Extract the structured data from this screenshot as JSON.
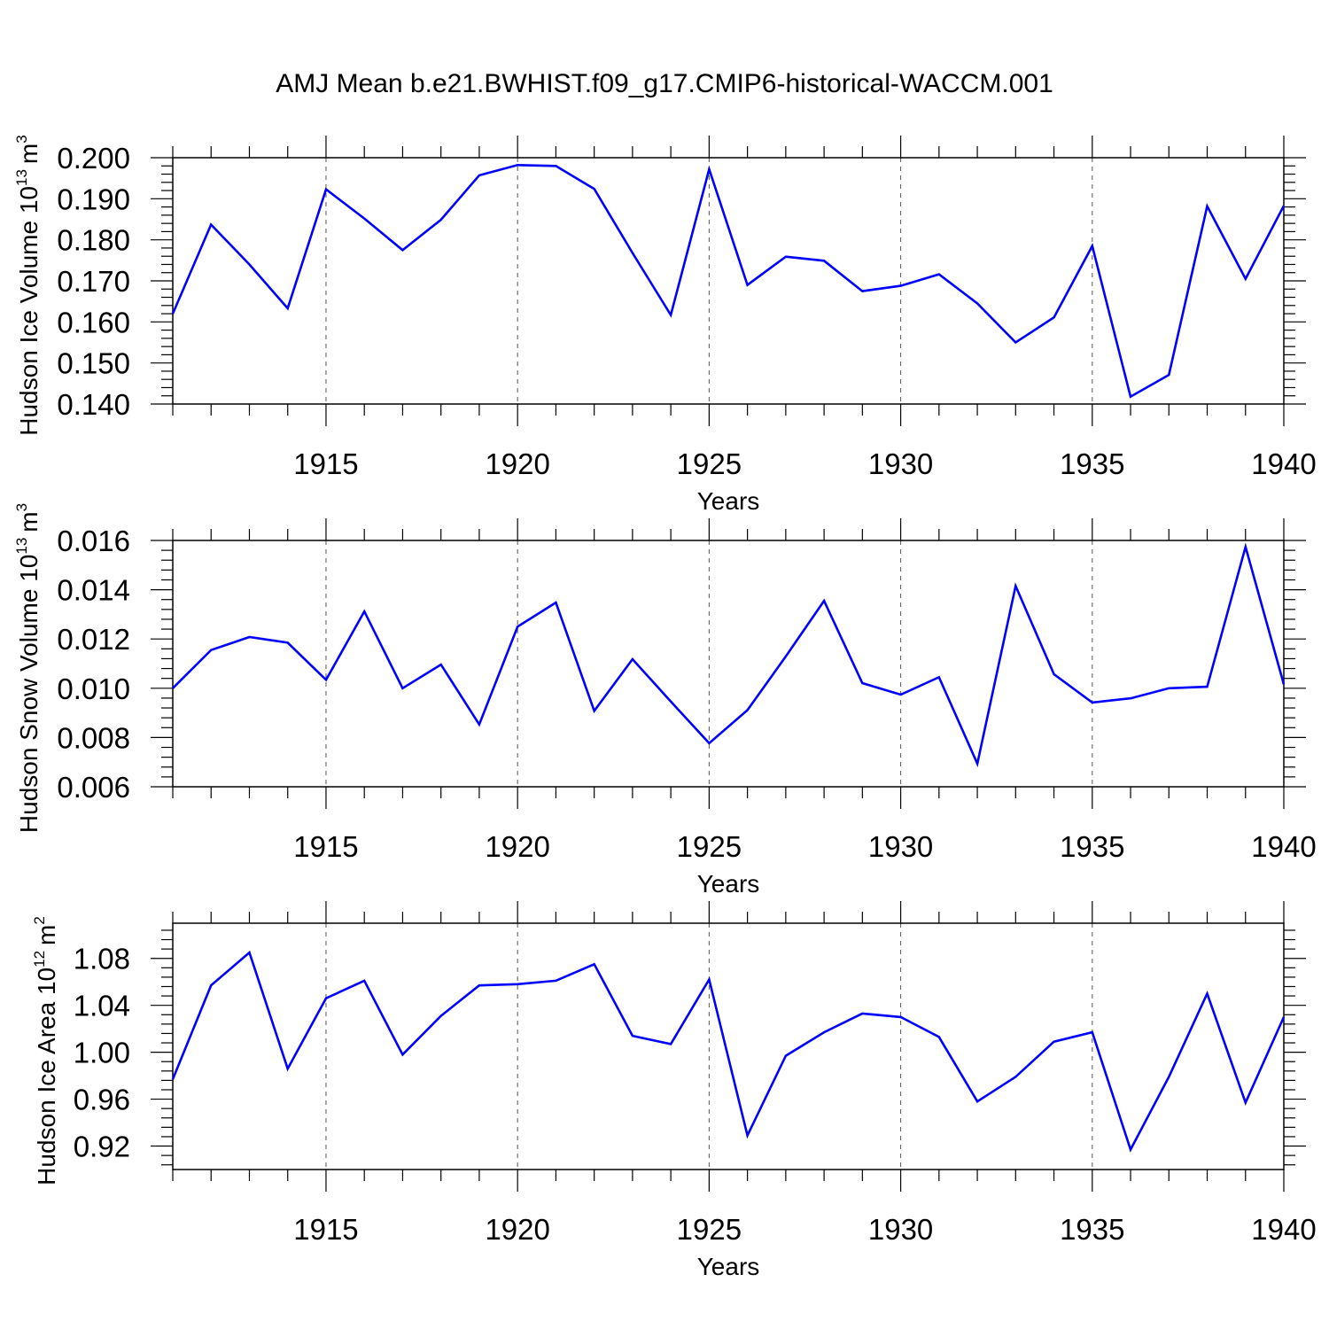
{
  "title": "AMJ Mean b.e21.BWHIST.f09_g17.CMIP6-historical-WACCM.001",
  "chart_data": [
    {
      "type": "line",
      "title": "AMJ Mean b.e21.BWHIST.f09_g17.CMIP6-historical-WACCM.001",
      "ylabel": "Hudson Ice Volume 10",
      "ylabel_sup": "13",
      "ylabel_unit": "m",
      "ylabel_unit_sup": "3",
      "xlabel": "Years",
      "xlim": [
        1911,
        1940
      ],
      "ylim": [
        0.14,
        0.2
      ],
      "yticks": [
        0.14,
        0.15,
        0.16,
        0.17,
        0.18,
        0.19,
        0.2
      ],
      "ytick_labels": [
        "0.140",
        "0.150",
        "0.160",
        "0.170",
        "0.180",
        "0.190",
        "0.200"
      ],
      "xticks": [
        1915,
        1920,
        1925,
        1930,
        1935,
        1940
      ],
      "xtick_labels": [
        "1915",
        "1920",
        "1925",
        "1930",
        "1935",
        "1940"
      ],
      "line_color": "#0000ff",
      "series": [
        {
          "name": "Hudson Ice Volume",
          "x": [
            1911,
            1912,
            1913,
            1914,
            1915,
            1916,
            1917,
            1918,
            1919,
            1920,
            1921,
            1922,
            1923,
            1924,
            1925,
            1926,
            1927,
            1928,
            1929,
            1930,
            1931,
            1932,
            1933,
            1934,
            1935,
            1936,
            1937,
            1938,
            1939,
            1940
          ],
          "values": [
            0.162,
            0.1837,
            0.174,
            0.1633,
            0.1923,
            0.1852,
            0.1775,
            0.1849,
            0.1957,
            0.1982,
            0.198,
            0.1924,
            0.1768,
            0.1617,
            0.1972,
            0.169,
            0.1759,
            0.1749,
            0.1675,
            0.1688,
            0.1716,
            0.1645,
            0.155,
            0.1611,
            0.1785,
            0.1418,
            0.1471,
            0.1882,
            0.1705,
            0.1883
          ]
        }
      ]
    },
    {
      "type": "line",
      "ylabel": "Hudson Snow Volume 10",
      "ylabel_sup": "13",
      "ylabel_unit": "m",
      "ylabel_unit_sup": "3",
      "xlabel": "Years",
      "xlim": [
        1911,
        1940
      ],
      "ylim": [
        0.006,
        0.016
      ],
      "yticks": [
        0.006,
        0.008,
        0.01,
        0.012,
        0.014,
        0.016
      ],
      "ytick_labels": [
        "0.006",
        "0.008",
        "0.010",
        "0.012",
        "0.014",
        "0.016"
      ],
      "xticks": [
        1915,
        1920,
        1925,
        1930,
        1935,
        1940
      ],
      "xtick_labels": [
        "1915",
        "1920",
        "1925",
        "1930",
        "1935",
        "1940"
      ],
      "line_color": "#0000ff",
      "series": [
        {
          "name": "Hudson Snow Volume",
          "x": [
            1911,
            1912,
            1913,
            1914,
            1915,
            1916,
            1917,
            1918,
            1919,
            1920,
            1921,
            1922,
            1923,
            1924,
            1925,
            1926,
            1927,
            1928,
            1929,
            1930,
            1931,
            1932,
            1933,
            1934,
            1935,
            1936,
            1937,
            1938,
            1939,
            1940
          ],
          "values": [
            0.01,
            0.01155,
            0.01208,
            0.01185,
            0.01034,
            0.01312,
            0.01,
            0.01096,
            0.00853,
            0.0125,
            0.01348,
            0.00908,
            0.01118,
            0.00946,
            0.00777,
            0.00911,
            0.01129,
            0.01355,
            0.01021,
            0.00974,
            0.01045,
            0.00694,
            0.01415,
            0.01057,
            0.00942,
            0.00959,
            0.01,
            0.01006,
            0.01574,
            0.01016
          ]
        }
      ]
    },
    {
      "type": "line",
      "ylabel": "Hudson Ice Area 10",
      "ylabel_sup": "12",
      "ylabel_unit": "m",
      "ylabel_unit_sup": "2",
      "xlabel": "Years",
      "xlim": [
        1911,
        1940
      ],
      "ylim": [
        0.9,
        1.11
      ],
      "yticks": [
        0.92,
        0.96,
        1.0,
        1.04,
        1.08
      ],
      "ytick_labels": [
        "0.92",
        "0.96",
        "1.00",
        "1.04",
        "1.08"
      ],
      "xticks": [
        1915,
        1920,
        1925,
        1930,
        1935,
        1940
      ],
      "xtick_labels": [
        "1915",
        "1920",
        "1925",
        "1930",
        "1935",
        "1940"
      ],
      "line_color": "#0000ff",
      "series": [
        {
          "name": "Hudson Ice Area",
          "x": [
            1911,
            1912,
            1913,
            1914,
            1915,
            1916,
            1917,
            1918,
            1919,
            1920,
            1921,
            1922,
            1923,
            1924,
            1925,
            1926,
            1927,
            1928,
            1929,
            1930,
            1931,
            1932,
            1933,
            1934,
            1935,
            1936,
            1937,
            1938,
            1939,
            1940
          ],
          "values": [
            0.977,
            1.057,
            1.085,
            0.986,
            1.046,
            1.061,
            0.998,
            1.031,
            1.057,
            1.058,
            1.061,
            1.075,
            1.014,
            1.007,
            1.062,
            0.929,
            0.997,
            1.017,
            1.033,
            1.03,
            1.013,
            0.958,
            0.979,
            1.009,
            1.017,
            0.917,
            0.979,
            1.05,
            0.957,
            1.03
          ]
        }
      ]
    }
  ]
}
